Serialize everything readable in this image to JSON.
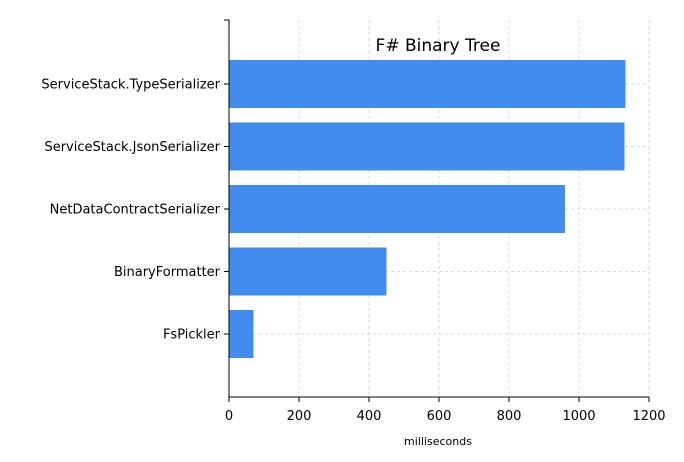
{
  "chart_data": {
    "type": "bar",
    "orientation": "horizontal",
    "title": "F# Binary Tree",
    "xlabel": "milliseconds",
    "ylabel": "",
    "categories": [
      "ServiceStack.TypeSerializer",
      "ServiceStack.JsonSerializer",
      "NetDataContractSerializer",
      "BinaryFormatter",
      "FsPickler"
    ],
    "values": [
      1133,
      1130,
      960,
      450,
      70
    ],
    "xlim": [
      0,
      1200
    ],
    "xticks": [
      0,
      200,
      400,
      600,
      800,
      1000,
      1200
    ],
    "grid": true,
    "bar_color": "#428cf0",
    "grid_color": "#d9d9d9"
  }
}
